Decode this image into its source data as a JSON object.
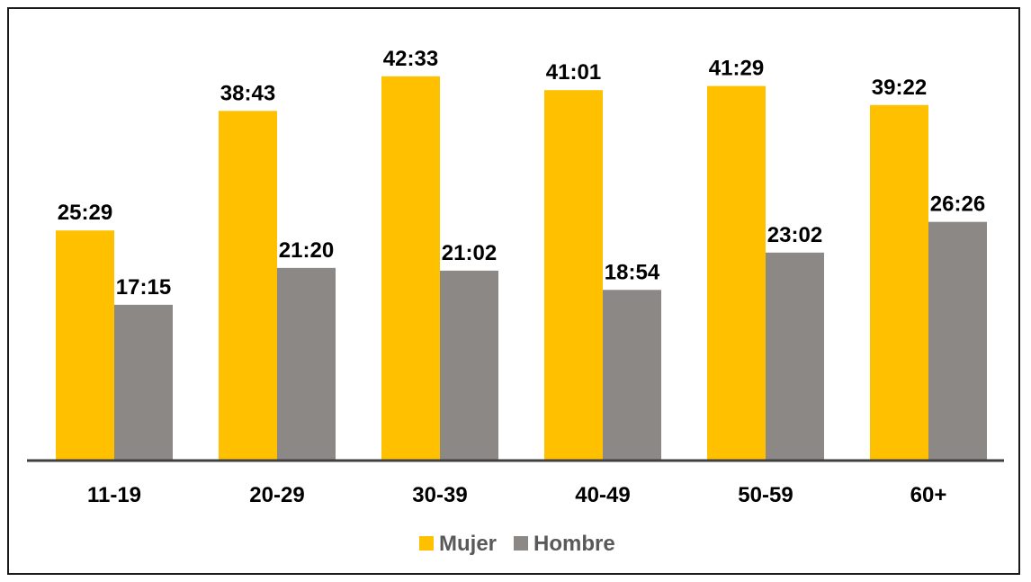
{
  "chart_data": {
    "type": "bar",
    "categories": [
      "11-19",
      "20-29",
      "30-39",
      "40-49",
      "50-59",
      "60+"
    ],
    "series": [
      {
        "name": "Mujer",
        "color": "#FFC000",
        "values": [
          25.48,
          38.72,
          42.55,
          41.02,
          41.48,
          39.37
        ],
        "labels": [
          "25:29",
          "38:43",
          "42:33",
          "41:01",
          "41:29",
          "39:22"
        ]
      },
      {
        "name": "Hombre",
        "color": "#8C8885",
        "values": [
          17.25,
          21.33,
          21.03,
          18.9,
          23.03,
          26.43
        ],
        "labels": [
          "17:15",
          "21:20",
          "21:02",
          "18:54",
          "23:02",
          "26:26"
        ]
      }
    ],
    "ylim": [
      0,
      51
    ],
    "grid": false,
    "legend_position": "bottom-center",
    "axis_color": "#404040"
  }
}
